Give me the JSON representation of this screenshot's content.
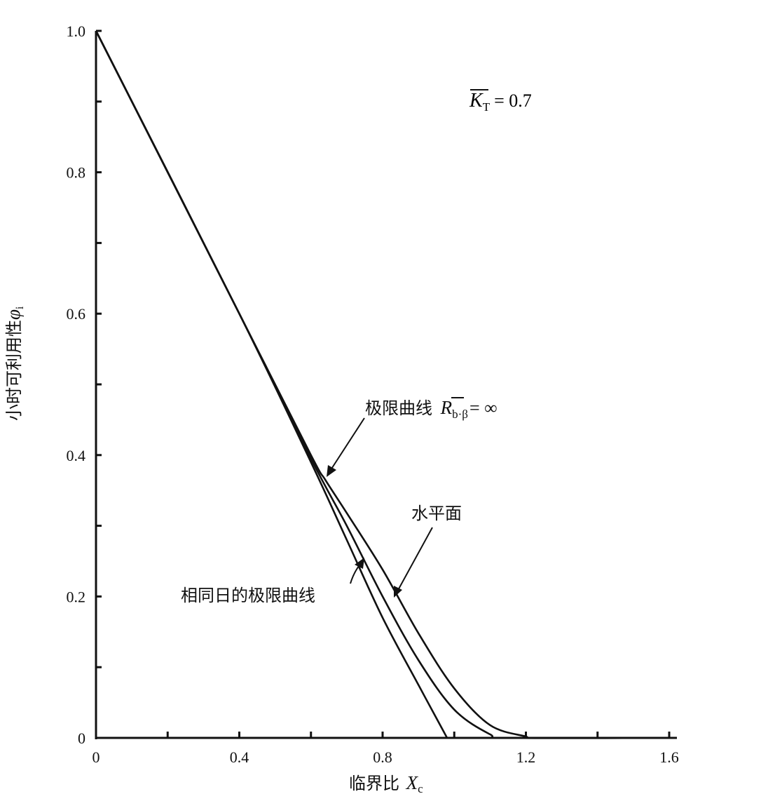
{
  "chart_data": {
    "type": "line",
    "title": "",
    "xlabel": "临界比",
    "xlabel_var": "X",
    "xlabel_sub": "c",
    "ylabel": "小时可利用性",
    "ylabel_var": "φ",
    "ylabel_sub": "i",
    "xlim": [
      0,
      1.6
    ],
    "ylim": [
      0,
      1.0
    ],
    "x_ticks": [
      0,
      0.4,
      0.8,
      1.2,
      1.6
    ],
    "x_tick_labels": [
      "0",
      "0.4",
      "0.8",
      "1.2",
      "1.6"
    ],
    "y_ticks": [
      0,
      0.2,
      0.4,
      0.6,
      0.8,
      1.0
    ],
    "y_tick_labels": [
      "0",
      "0.2",
      "0.4",
      "0.6",
      "0.8",
      "1.0"
    ],
    "x_minor_ticks": [
      0.2,
      0.6,
      1.0,
      1.4
    ],
    "y_minor_ticks": [
      0.1,
      0.3,
      0.5,
      0.7,
      0.9
    ],
    "parameter": {
      "symbol": "K",
      "subscript": "T",
      "value": "= 0.7"
    },
    "series": [
      {
        "name": "极限曲线",
        "name_symbol": "R",
        "name_sub": "b·β",
        "name_value": "= ∞",
        "x": [
          0,
          0.4,
          0.6,
          0.64,
          0.7,
          0.8,
          0.9,
          1.0,
          1.1,
          1.2,
          1.22,
          1.6
        ],
        "y": [
          1.0,
          0.6,
          0.4,
          0.365,
          0.318,
          0.238,
          0.148,
          0.07,
          0.018,
          0.002,
          0.0,
          0.0
        ]
      },
      {
        "name": "水平面",
        "x": [
          0,
          0.4,
          0.6,
          0.7,
          0.8,
          0.9,
          1.0,
          1.1,
          1.15,
          1.6
        ],
        "y": [
          1.0,
          0.6,
          0.395,
          0.3,
          0.2,
          0.11,
          0.04,
          0.005,
          0.0,
          0.0
        ]
      },
      {
        "name": "相同日的极限曲线",
        "x": [
          0,
          0.4,
          0.6,
          0.7,
          0.8,
          0.9,
          0.98
        ],
        "y": [
          1.0,
          0.6,
          0.39,
          0.28,
          0.17,
          0.075,
          0.0
        ]
      }
    ]
  }
}
